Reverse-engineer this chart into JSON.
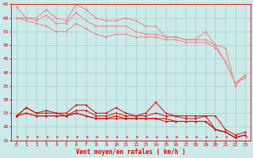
{
  "x": [
    0,
    1,
    2,
    3,
    4,
    5,
    6,
    7,
    8,
    9,
    10,
    11,
    12,
    13,
    14,
    15,
    16,
    17,
    18,
    19,
    20,
    21,
    22,
    23
  ],
  "line1": [
    64,
    60,
    60,
    63,
    60,
    59,
    65,
    63,
    60,
    59,
    59,
    60,
    59,
    57,
    57,
    53,
    53,
    52,
    52,
    55,
    50,
    49,
    35,
    39
  ],
  "line2": [
    60,
    60,
    59,
    61,
    58,
    58,
    62,
    59,
    57,
    57,
    57,
    57,
    55,
    54,
    54,
    53,
    53,
    52,
    52,
    52,
    50,
    44,
    36,
    39
  ],
  "line3": [
    60,
    59,
    58,
    57,
    55,
    55,
    58,
    56,
    54,
    53,
    54,
    54,
    53,
    53,
    53,
    52,
    52,
    51,
    51,
    51,
    49,
    44,
    36,
    38
  ],
  "line4": [
    24,
    27,
    25,
    26,
    25,
    25,
    28,
    28,
    25,
    25,
    27,
    25,
    24,
    25,
    29,
    25,
    24,
    24,
    24,
    24,
    24,
    19,
    17,
    18
  ],
  "line5": [
    24,
    27,
    25,
    25,
    25,
    24,
    26,
    26,
    24,
    24,
    25,
    24,
    24,
    24,
    25,
    24,
    24,
    23,
    23,
    24,
    19,
    18,
    16,
    17
  ],
  "line6": [
    24,
    25,
    24,
    24,
    24,
    24,
    25,
    24,
    23,
    23,
    24,
    23,
    23,
    23,
    23,
    23,
    22,
    22,
    22,
    22,
    19,
    18,
    16,
    17
  ],
  "line7": [
    24,
    25,
    24,
    24,
    24,
    24,
    25,
    24,
    23,
    23,
    23,
    23,
    23,
    23,
    23,
    22,
    22,
    22,
    22,
    22,
    19,
    18,
    16,
    17
  ],
  "bg_color": "#cceaea",
  "grid_color": "#aacccc",
  "line_color_light": "#f08080",
  "line_color_dark": "#dd0000",
  "xlabel": "Vent moyen/en rafales ( km/h )",
  "ylim": [
    15,
    65
  ],
  "yticks": [
    15,
    20,
    25,
    30,
    35,
    40,
    45,
    50,
    55,
    60,
    65
  ],
  "xticks": [
    0,
    1,
    2,
    3,
    4,
    5,
    6,
    7,
    8,
    9,
    10,
    11,
    12,
    13,
    14,
    15,
    16,
    17,
    18,
    19,
    20,
    21,
    22,
    23
  ]
}
